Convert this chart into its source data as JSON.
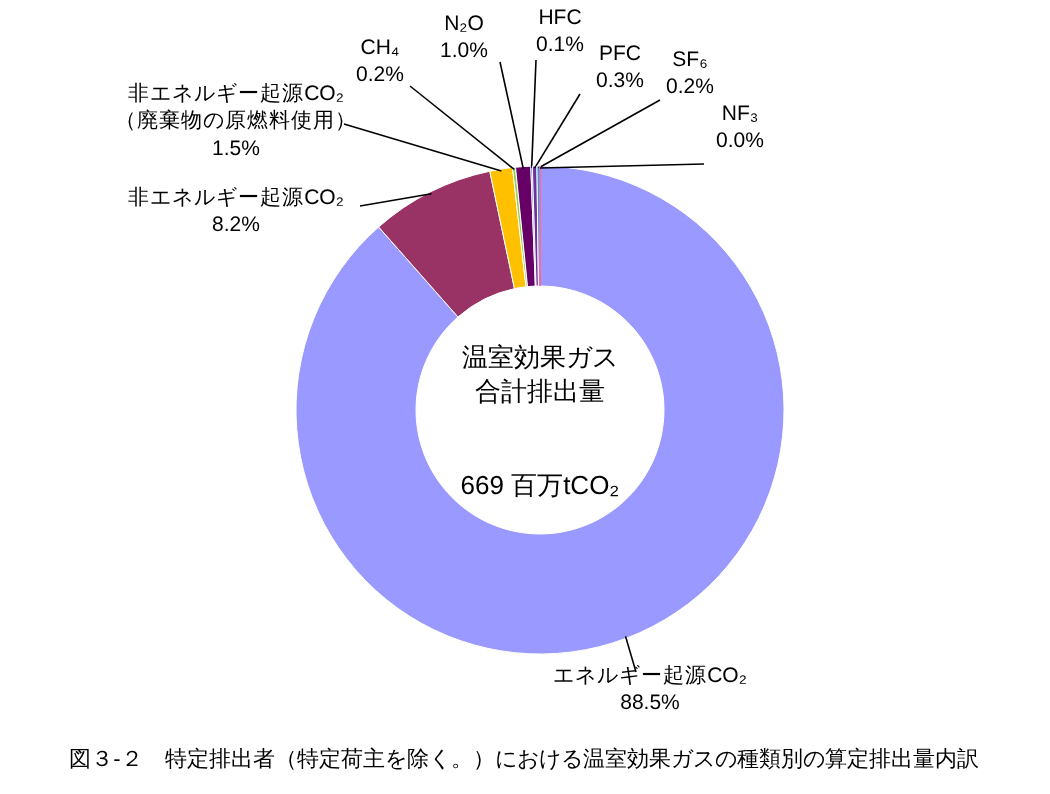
{
  "chart_data": {
    "type": "donut",
    "title": "図３-２　特定排出者（特定荷主を除く。）における温室効果ガスの種類別の算定排出量内訳",
    "categories": [
      "エネルギー起源CO₂",
      "非エネルギー起源CO₂",
      "非エネルギー起源CO₂\n（廃棄物の原燃料使用）",
      "CH₄",
      "N₂O",
      "HFC",
      "PFC",
      "SF₆",
      "NF₃"
    ],
    "values": [
      88.5,
      8.2,
      1.5,
      0.2,
      1.0,
      0.1,
      0.3,
      0.2,
      0.0
    ],
    "value_labels": [
      "88.5%",
      "8.2%",
      "1.5%",
      "0.2%",
      "1.0%",
      "0.1%",
      "0.3%",
      "0.2%",
      "0.0%"
    ],
    "colors": [
      "#9999ff",
      "#993366",
      "#ffc000",
      "#92d050",
      "#660066",
      "#0070c0",
      "#7030a0",
      "#00b0f0",
      "#ff6699"
    ],
    "annotations": [
      "温室効果ガス",
      "合計排出量",
      "669 百万tCO₂"
    ]
  }
}
